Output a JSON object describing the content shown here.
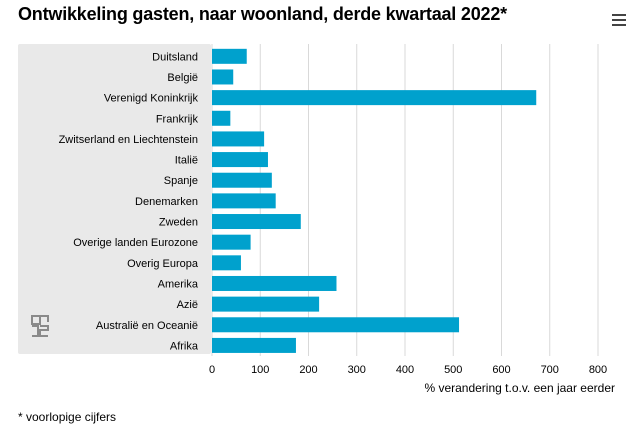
{
  "header": {
    "title": "Ontwikkeling gasten, naar woonland, derde kwartaal 2022*",
    "menu_icon": "hamburger-menu-icon"
  },
  "footnote": "* voorlopige cijfers",
  "logo": "cbs-logo",
  "colors": {
    "bar": "#00a1cd",
    "label_panel": "#e9e9e9",
    "grid": "#d9d9d9"
  },
  "chart_data": {
    "type": "bar",
    "orientation": "horizontal",
    "categories": [
      "Duitsland",
      "België",
      "Verenigd Koninkrijk",
      "Frankrijk",
      "Zwitserland en Liechtenstein",
      "Italië",
      "Spanje",
      "Denemarken",
      "Zweden",
      "Overige landen Eurozone",
      "Overig Europa",
      "Amerika",
      "Azië",
      "Australië en Oceanië",
      "Afrika"
    ],
    "values": [
      72,
      44,
      672,
      38,
      108,
      116,
      124,
      132,
      184,
      80,
      60,
      258,
      222,
      512,
      174
    ],
    "xlabel": "% verandering t.o.v. een jaar eerder",
    "xlim": [
      0,
      800
    ],
    "xticks": [
      0,
      100,
      200,
      300,
      400,
      500,
      600,
      700,
      800
    ],
    "grid": true
  }
}
